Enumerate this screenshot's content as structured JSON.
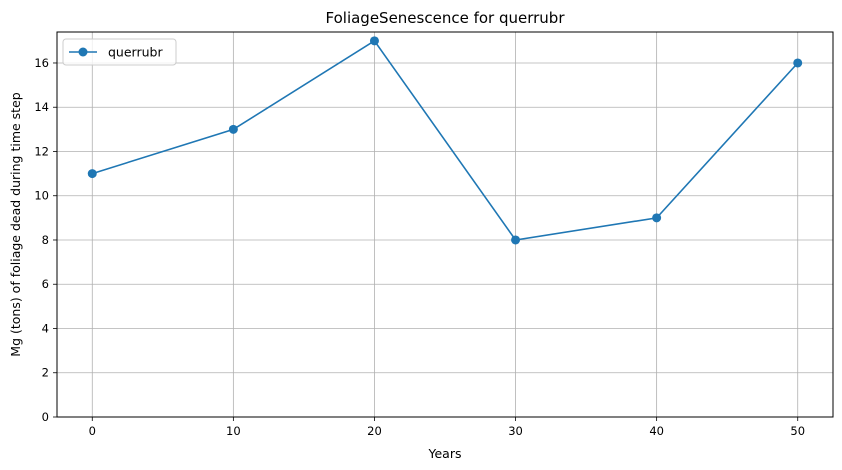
{
  "chart_data": {
    "type": "line",
    "title": "FoliageSenescence for querrubr",
    "xlabel": "Years",
    "ylabel": "Mg (tons) of foliage dead during time step",
    "x": [
      0,
      10,
      20,
      30,
      40,
      50
    ],
    "series": [
      {
        "name": "querrubr",
        "values": [
          11,
          13,
          17,
          8,
          9,
          16
        ],
        "color": "#1f77b4"
      }
    ],
    "xlim": [
      -2.5,
      52.5
    ],
    "ylim": [
      0,
      17.4
    ],
    "xticks": [
      0,
      10,
      20,
      30,
      40,
      50
    ],
    "yticks": [
      0,
      2,
      4,
      6,
      8,
      10,
      12,
      14,
      16
    ],
    "grid": true,
    "legend_position": "top-left"
  }
}
